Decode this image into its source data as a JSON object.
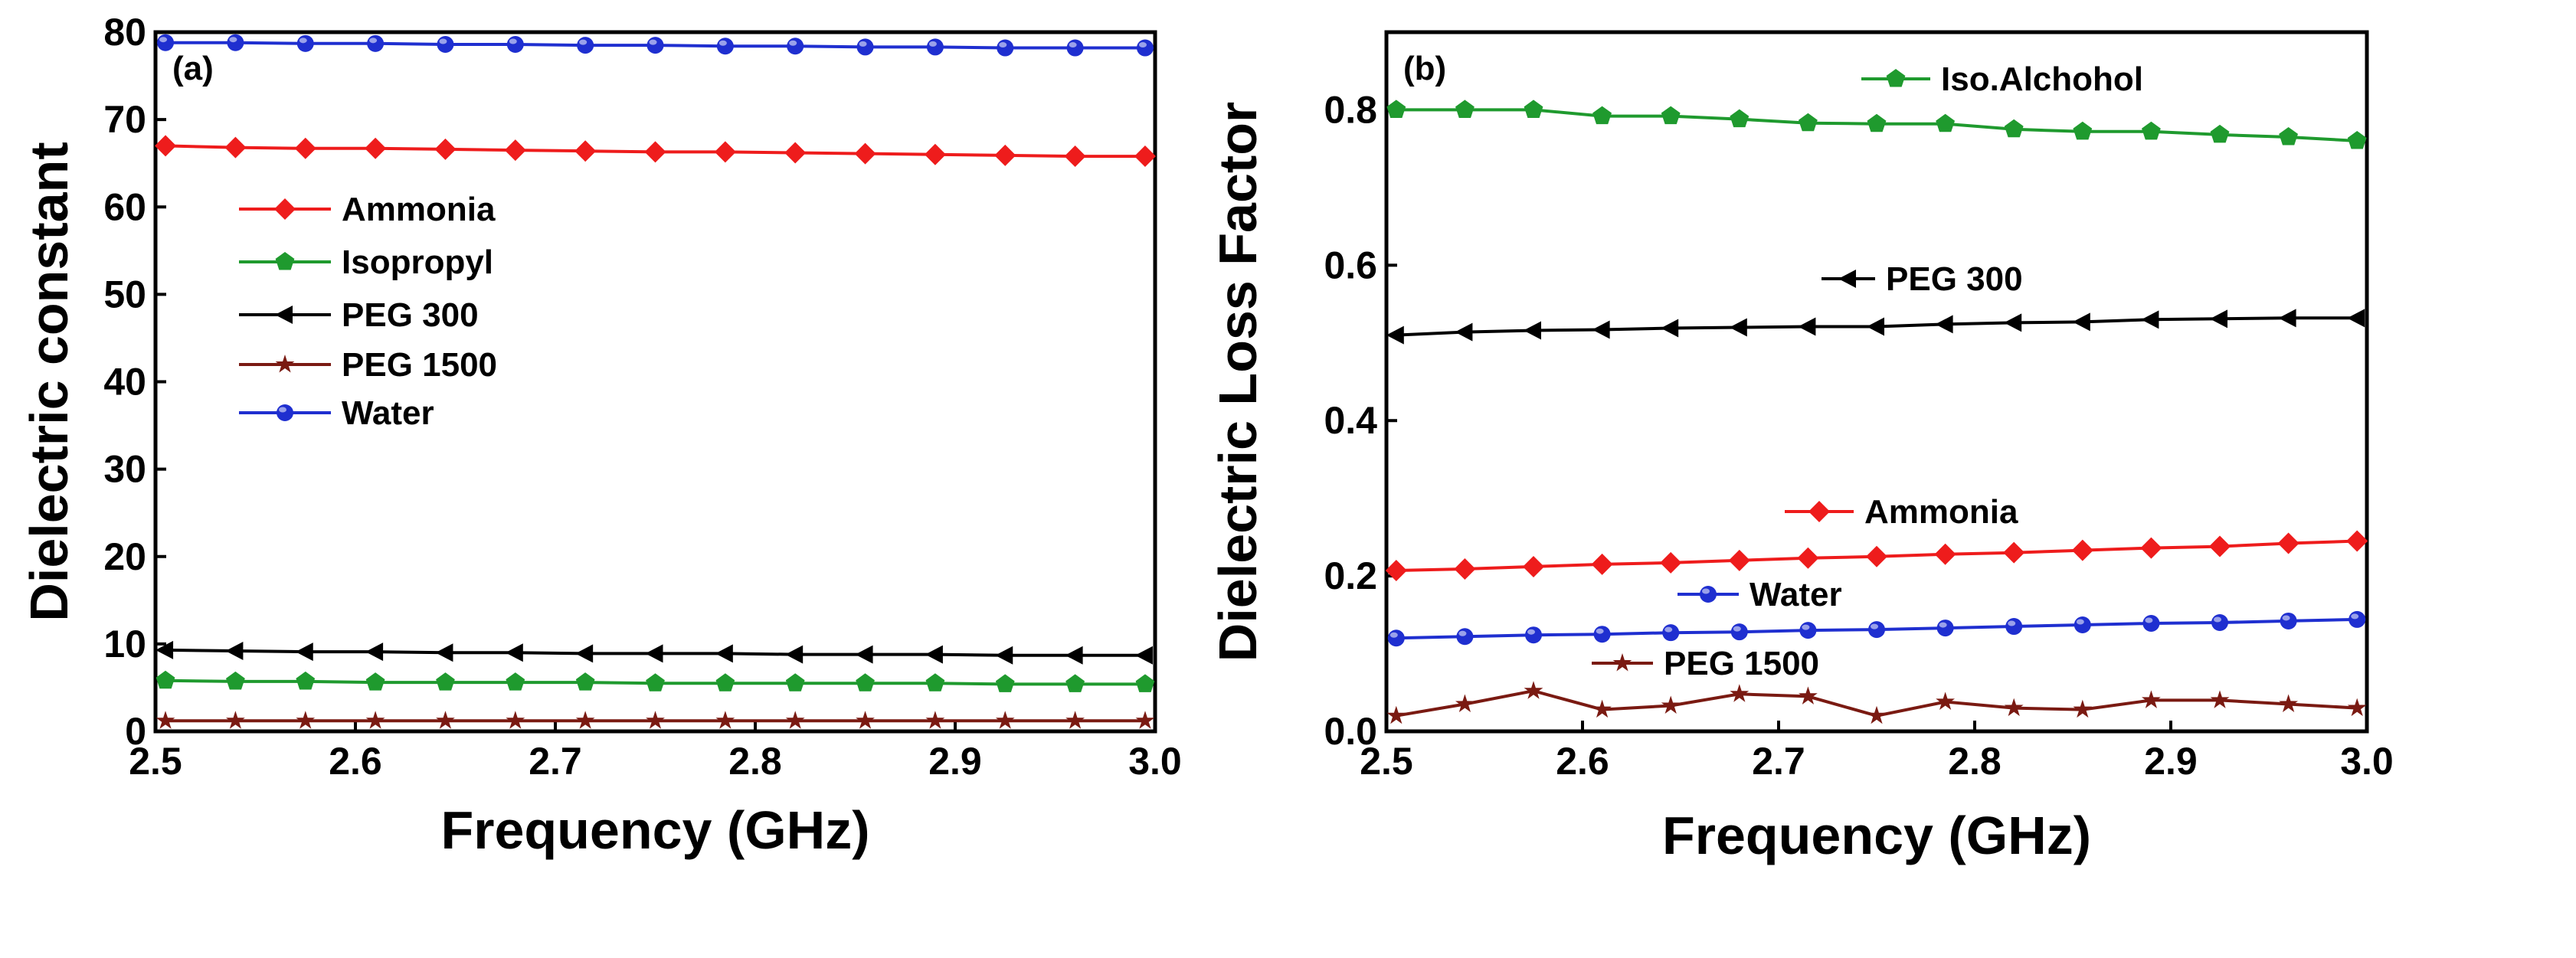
{
  "colors": {
    "Ammonia": "#ee1c1c",
    "Isopropyl": "#1f9a2e",
    "PEG 300": "#000000",
    "PEG 1500": "#7a1a12",
    "Water": "#1f2fd0"
  },
  "chart_data": [
    {
      "type": "line",
      "panel_label": "(a)",
      "xlabel": "Frequency (GHz)",
      "ylabel": "Dielectric constant",
      "xlim": [
        2.5,
        3.0
      ],
      "ylim": [
        0,
        80
      ],
      "xticks": [
        "2.5",
        "2.6",
        "2.7",
        "2.8",
        "2.9",
        "3.0"
      ],
      "yticks": [
        "0",
        "10",
        "20",
        "30",
        "40",
        "50",
        "60",
        "70",
        "80"
      ],
      "x": [
        2.505,
        2.54,
        2.575,
        2.61,
        2.645,
        2.68,
        2.715,
        2.75,
        2.785,
        2.82,
        2.855,
        2.89,
        2.925,
        2.96,
        2.995
      ],
      "legend_position": "middle-left",
      "series": [
        {
          "name": "Ammonia",
          "marker": "diamond",
          "values": [
            67.0,
            66.8,
            66.7,
            66.7,
            66.6,
            66.5,
            66.4,
            66.3,
            66.3,
            66.2,
            66.1,
            66.0,
            65.9,
            65.8,
            65.8
          ]
        },
        {
          "name": "Isopropyl",
          "marker": "pentagon",
          "values": [
            5.8,
            5.7,
            5.7,
            5.6,
            5.6,
            5.6,
            5.6,
            5.5,
            5.5,
            5.5,
            5.5,
            5.5,
            5.4,
            5.4,
            5.4
          ]
        },
        {
          "name": "PEG 300",
          "marker": "triangle-left",
          "values": [
            9.3,
            9.2,
            9.1,
            9.1,
            9.0,
            9.0,
            8.9,
            8.9,
            8.9,
            8.8,
            8.8,
            8.8,
            8.7,
            8.7,
            8.7
          ]
        },
        {
          "name": "PEG 1500",
          "marker": "star",
          "values": [
            1.2,
            1.2,
            1.2,
            1.2,
            1.2,
            1.2,
            1.2,
            1.2,
            1.2,
            1.2,
            1.2,
            1.2,
            1.2,
            1.2,
            1.2
          ]
        },
        {
          "name": "Water",
          "marker": "circle",
          "values": [
            78.8,
            78.8,
            78.7,
            78.7,
            78.6,
            78.6,
            78.5,
            78.5,
            78.4,
            78.4,
            78.3,
            78.3,
            78.2,
            78.2,
            78.2
          ]
        }
      ]
    },
    {
      "type": "line",
      "panel_label": "(b)",
      "xlabel": "Frequency (GHz)",
      "ylabel": "Dielectric Loss Factor",
      "xlim": [
        2.5,
        3.0
      ],
      "ylim": [
        0,
        0.9
      ],
      "xticks": [
        "2.5",
        "2.6",
        "2.7",
        "2.8",
        "2.9",
        "3.0"
      ],
      "yticks": [
        "0.0",
        "0.2",
        "0.4",
        "0.6",
        "0.8"
      ],
      "x": [
        2.505,
        2.54,
        2.575,
        2.61,
        2.645,
        2.68,
        2.715,
        2.75,
        2.785,
        2.82,
        2.855,
        2.89,
        2.925,
        2.96,
        2.995
      ],
      "legend_position": "inline labels near each series",
      "series": [
        {
          "name": "Iso.Alchohol",
          "color_key": "Isopropyl",
          "marker": "pentagon",
          "values": [
            0.8,
            0.8,
            0.8,
            0.792,
            0.792,
            0.788,
            0.783,
            0.782,
            0.782,
            0.775,
            0.772,
            0.772,
            0.768,
            0.765,
            0.76
          ]
        },
        {
          "name": "PEG 300",
          "color_key": "PEG 300",
          "marker": "triangle-left",
          "values": [
            0.51,
            0.514,
            0.516,
            0.517,
            0.519,
            0.52,
            0.521,
            0.521,
            0.524,
            0.526,
            0.527,
            0.53,
            0.531,
            0.532,
            0.532
          ]
        },
        {
          "name": "Ammonia",
          "color_key": "Ammonia",
          "marker": "diamond",
          "values": [
            0.207,
            0.209,
            0.212,
            0.215,
            0.217,
            0.22,
            0.223,
            0.225,
            0.228,
            0.23,
            0.233,
            0.236,
            0.238,
            0.242,
            0.245
          ]
        },
        {
          "name": "Water",
          "color_key": "Water",
          "marker": "circle",
          "values": [
            0.12,
            0.122,
            0.124,
            0.125,
            0.127,
            0.128,
            0.13,
            0.131,
            0.133,
            0.135,
            0.137,
            0.139,
            0.14,
            0.142,
            0.144
          ]
        },
        {
          "name": "PEG 1500",
          "color_key": "PEG 1500",
          "marker": "star",
          "values": [
            0.02,
            0.035,
            0.052,
            0.028,
            0.033,
            0.048,
            0.045,
            0.02,
            0.038,
            0.03,
            0.028,
            0.04,
            0.04,
            0.035,
            0.03
          ]
        }
      ]
    }
  ]
}
